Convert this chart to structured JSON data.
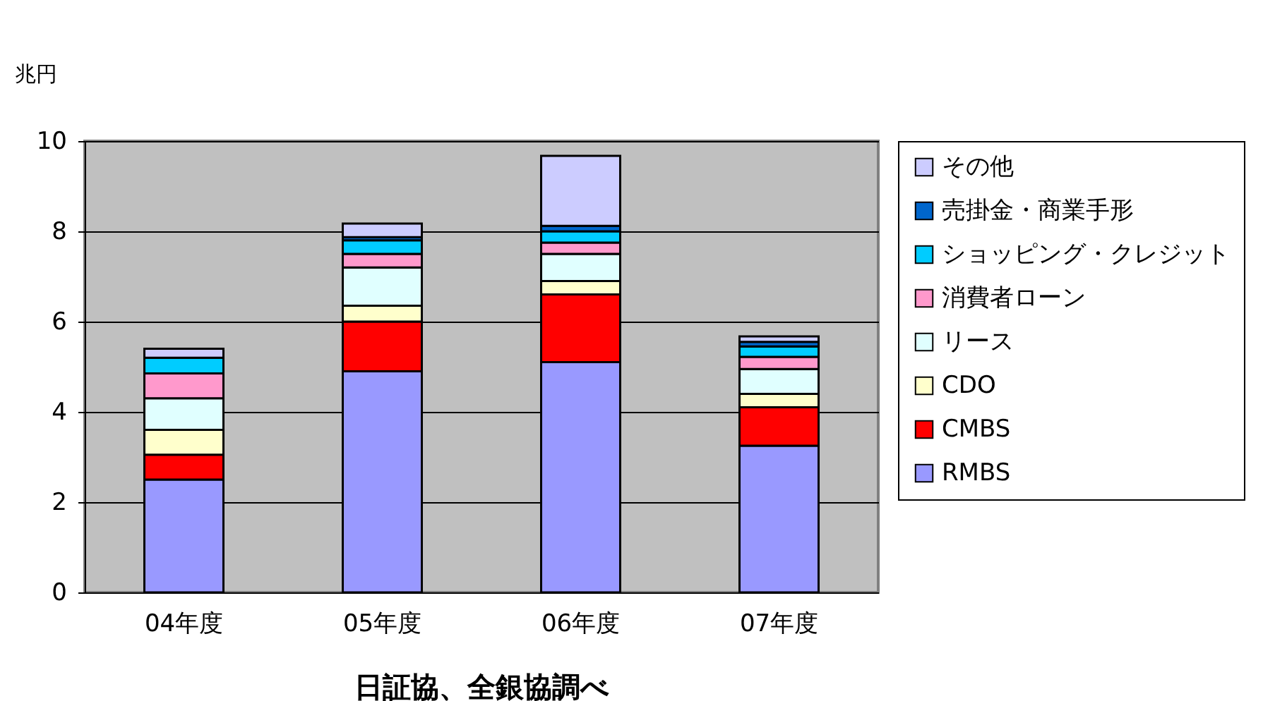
{
  "chart_data": {
    "type": "bar",
    "stacked": true,
    "ylabel": "兆円",
    "annotations": [
      "日証協、全銀協調べ"
    ],
    "categories": [
      "04年度",
      "05年度",
      "06年度",
      "07年度"
    ],
    "series": [
      {
        "name": "RMBS",
        "color": "#9999ff",
        "values": [
          2.5,
          4.9,
          5.1,
          3.25
        ]
      },
      {
        "name": "CMBS",
        "color": "#ff0000",
        "values": [
          0.55,
          1.1,
          1.5,
          0.85
        ]
      },
      {
        "name": "CDO",
        "color": "#ffffcc",
        "values": [
          0.55,
          0.35,
          0.3,
          0.3
        ]
      },
      {
        "name": "リース",
        "color": "#e0ffff",
        "values": [
          0.7,
          0.85,
          0.6,
          0.55
        ]
      },
      {
        "name": "消費者ローン",
        "color": "#ff99cc",
        "values": [
          0.55,
          0.3,
          0.25,
          0.27
        ]
      },
      {
        "name": "ショッピング・クレジット",
        "color": "#00ccff",
        "values": [
          0.35,
          0.3,
          0.25,
          0.23
        ]
      },
      {
        "name": "売掛金・商業手形",
        "color": "#0066cc",
        "values": [
          null,
          0.07,
          0.12,
          0.1
        ]
      },
      {
        "name": "その他",
        "color": "#ccccff",
        "values": [
          0.2,
          0.3,
          1.55,
          0.12
        ]
      }
    ],
    "ylim": [
      0,
      10
    ],
    "yticks": [
      0,
      2,
      4,
      6,
      8,
      10
    ],
    "grid": "y",
    "legend": "right"
  }
}
